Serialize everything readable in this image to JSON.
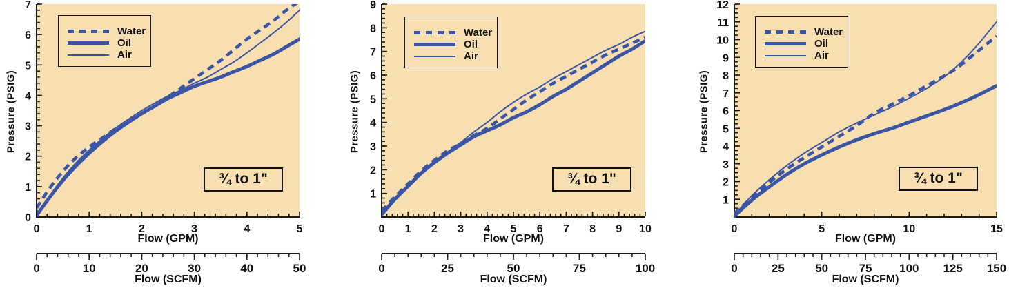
{
  "colors": {
    "curve_blue": "#3b55a5",
    "plot_background": "#f8dfb2",
    "axis": "#1a1a1a",
    "text": "#111111",
    "page_background": "#ffffff"
  },
  "chart_data": [
    {
      "type": "line",
      "size_label": "¾ to 1\"",
      "ylabel": "Pressure (PSIG)",
      "xlabel": "Flow (GPM)",
      "x2label": "Flow (SCFM)",
      "xlim": [
        0,
        5
      ],
      "ylim": [
        0,
        7
      ],
      "x2lim": [
        0,
        50
      ],
      "xticks": {
        "labels": [
          0,
          1,
          2,
          3,
          4,
          5
        ],
        "minor_step": 0.2
      },
      "yticks": {
        "labels": [
          0,
          1,
          2,
          3,
          4,
          5,
          6,
          7
        ],
        "minor_step": 0.2
      },
      "x2ticks": {
        "labels": [
          0,
          10,
          20,
          30,
          40,
          50
        ],
        "minor_step": 2
      },
      "legend_position": "upper-left",
      "grid": false,
      "series": [
        {
          "name": "Water",
          "style": "dashed",
          "points": [
            [
              0,
              0.3
            ],
            [
              0.25,
              0.95
            ],
            [
              0.5,
              1.5
            ],
            [
              0.75,
              1.95
            ],
            [
              1,
              2.3
            ],
            [
              1.25,
              2.6
            ],
            [
              1.5,
              2.9
            ],
            [
              1.75,
              3.15
            ],
            [
              2,
              3.4
            ],
            [
              2.25,
              3.65
            ],
            [
              2.5,
              3.95
            ],
            [
              2.75,
              4.25
            ],
            [
              3,
              4.55
            ],
            [
              3.25,
              4.85
            ],
            [
              3.5,
              5.15
            ],
            [
              3.75,
              5.5
            ],
            [
              4,
              5.85
            ],
            [
              4.25,
              6.15
            ],
            [
              4.5,
              6.45
            ],
            [
              4.75,
              6.8
            ],
            [
              5,
              7.1
            ]
          ]
        },
        {
          "name": "Oil",
          "style": "thick-solid",
          "points": [
            [
              0,
              0.05
            ],
            [
              0.25,
              0.65
            ],
            [
              0.5,
              1.2
            ],
            [
              0.75,
              1.68
            ],
            [
              1,
              2.1
            ],
            [
              1.25,
              2.48
            ],
            [
              1.5,
              2.82
            ],
            [
              1.75,
              3.12
            ],
            [
              2,
              3.4
            ],
            [
              2.25,
              3.65
            ],
            [
              2.5,
              3.9
            ],
            [
              2.75,
              4.1
            ],
            [
              3,
              4.3
            ],
            [
              3.25,
              4.45
            ],
            [
              3.5,
              4.6
            ],
            [
              3.75,
              4.78
            ],
            [
              4,
              4.95
            ],
            [
              4.25,
              5.15
            ],
            [
              4.5,
              5.35
            ],
            [
              4.75,
              5.6
            ],
            [
              5,
              5.85
            ]
          ]
        },
        {
          "name": "Air",
          "style": "thin-solid",
          "points": [
            [
              0,
              0.05
            ],
            [
              0.25,
              0.7
            ],
            [
              0.5,
              1.28
            ],
            [
              0.75,
              1.78
            ],
            [
              1,
              2.2
            ],
            [
              1.25,
              2.58
            ],
            [
              1.5,
              2.92
            ],
            [
              1.75,
              3.22
            ],
            [
              2,
              3.5
            ],
            [
              2.25,
              3.75
            ],
            [
              2.5,
              3.98
            ],
            [
              2.75,
              4.18
            ],
            [
              3,
              4.4
            ],
            [
              3.25,
              4.6
            ],
            [
              3.5,
              4.85
            ],
            [
              3.75,
              5.1
            ],
            [
              4,
              5.4
            ],
            [
              4.25,
              5.72
            ],
            [
              4.5,
              6.05
            ],
            [
              4.75,
              6.4
            ],
            [
              5,
              6.8
            ]
          ]
        }
      ]
    },
    {
      "type": "line",
      "size_label": "¾ to 1\"",
      "ylabel": "Pressure (PSIG)",
      "xlabel": "Flow (GPM)",
      "x2label": "Flow (SCFM)",
      "xlim": [
        0,
        10
      ],
      "ylim": [
        0,
        9
      ],
      "x2lim": [
        0,
        100
      ],
      "xticks": {
        "labels": [
          0,
          1,
          2,
          3,
          4,
          5,
          6,
          7,
          8,
          9,
          10
        ],
        "minor_step": 0.2
      },
      "yticks": {
        "labels": [
          1,
          2,
          3,
          4,
          5,
          6,
          7,
          8,
          9
        ],
        "minor_step": 0.2
      },
      "x2ticks": {
        "labels": [
          0,
          25,
          50,
          75,
          100
        ],
        "minor_step": 5
      },
      "legend_position": "upper-left",
      "grid": false,
      "series": [
        {
          "name": "Water",
          "style": "dashed",
          "points": [
            [
              0,
              0.25
            ],
            [
              0.5,
              0.85
            ],
            [
              1,
              1.4
            ],
            [
              1.5,
              1.95
            ],
            [
              2,
              2.4
            ],
            [
              2.5,
              2.8
            ],
            [
              3,
              3.1
            ],
            [
              3.5,
              3.45
            ],
            [
              4,
              3.75
            ],
            [
              4.5,
              4.15
            ],
            [
              5,
              4.55
            ],
            [
              5.5,
              4.95
            ],
            [
              6,
              5.3
            ],
            [
              6.5,
              5.65
            ],
            [
              7,
              5.95
            ],
            [
              7.5,
              6.25
            ],
            [
              8,
              6.55
            ],
            [
              8.5,
              6.85
            ],
            [
              9,
              7.1
            ],
            [
              9.5,
              7.35
            ],
            [
              10,
              7.6
            ]
          ]
        },
        {
          "name": "Oil",
          "style": "thick-solid",
          "points": [
            [
              0,
              0.1
            ],
            [
              0.5,
              0.75
            ],
            [
              1,
              1.3
            ],
            [
              1.5,
              1.85
            ],
            [
              2,
              2.3
            ],
            [
              2.5,
              2.7
            ],
            [
              3,
              3.05
            ],
            [
              3.5,
              3.4
            ],
            [
              4,
              3.65
            ],
            [
              4.5,
              3.9
            ],
            [
              5,
              4.2
            ],
            [
              5.5,
              4.45
            ],
            [
              6,
              4.75
            ],
            [
              6.5,
              5.1
            ],
            [
              7,
              5.4
            ],
            [
              7.5,
              5.75
            ],
            [
              8,
              6.1
            ],
            [
              8.5,
              6.45
            ],
            [
              9,
              6.8
            ],
            [
              9.5,
              7.1
            ],
            [
              10,
              7.45
            ]
          ]
        },
        {
          "name": "Air",
          "style": "thin-solid",
          "points": [
            [
              0,
              0.15
            ],
            [
              0.5,
              0.75
            ],
            [
              1,
              1.3
            ],
            [
              1.5,
              1.9
            ],
            [
              2,
              2.35
            ],
            [
              2.5,
              2.75
            ],
            [
              3,
              3.15
            ],
            [
              3.5,
              3.6
            ],
            [
              4,
              4.0
            ],
            [
              4.5,
              4.45
            ],
            [
              5,
              4.85
            ],
            [
              5.5,
              5.2
            ],
            [
              6,
              5.5
            ],
            [
              6.5,
              5.85
            ],
            [
              7,
              6.15
            ],
            [
              7.5,
              6.45
            ],
            [
              8,
              6.75
            ],
            [
              8.5,
              7.05
            ],
            [
              9,
              7.3
            ],
            [
              9.5,
              7.6
            ],
            [
              10,
              7.85
            ]
          ]
        }
      ]
    },
    {
      "type": "line",
      "size_label": "¾ to 1\"",
      "ylabel": "Pressure (PSIG)",
      "xlabel": "Flow (GPM)",
      "x2label": "Flow (SCFM)",
      "xlim": [
        0,
        15
      ],
      "ylim": [
        0,
        12
      ],
      "x2lim": [
        0,
        150
      ],
      "xticks": {
        "labels": [
          0,
          5,
          10,
          15
        ],
        "minor_step": 1
      },
      "yticks": {
        "labels": [
          1,
          2,
          3,
          4,
          5,
          6,
          7,
          8,
          9,
          10,
          11,
          12
        ],
        "minor_step": 0.25
      },
      "x2ticks": {
        "labels": [
          0,
          25,
          50,
          75,
          100,
          125,
          150
        ],
        "minor_step": 5
      },
      "legend_position": "upper-left",
      "grid": false,
      "series": [
        {
          "name": "Water",
          "style": "dashed",
          "points": [
            [
              0,
              0.2
            ],
            [
              1,
              1.1
            ],
            [
              2,
              1.95
            ],
            [
              3,
              2.7
            ],
            [
              4,
              3.35
            ],
            [
              5,
              3.95
            ],
            [
              6,
              4.55
            ],
            [
              7,
              5.15
            ],
            [
              8,
              5.85
            ],
            [
              9,
              6.35
            ],
            [
              10,
              6.85
            ],
            [
              11,
              7.4
            ],
            [
              12,
              7.95
            ],
            [
              12.5,
              8.25
            ],
            [
              13,
              8.6
            ],
            [
              13.5,
              9.0
            ],
            [
              14,
              9.4
            ],
            [
              14.5,
              9.8
            ],
            [
              15,
              10.2
            ]
          ]
        },
        {
          "name": "Oil",
          "style": "thick-solid",
          "points": [
            [
              0,
              0.05
            ],
            [
              1,
              0.95
            ],
            [
              2,
              1.7
            ],
            [
              3,
              2.4
            ],
            [
              4,
              3.0
            ],
            [
              5,
              3.5
            ],
            [
              6,
              3.95
            ],
            [
              7,
              4.35
            ],
            [
              8,
              4.7
            ],
            [
              9,
              5.0
            ],
            [
              10,
              5.35
            ],
            [
              11,
              5.7
            ],
            [
              12,
              6.05
            ],
            [
              13,
              6.45
            ],
            [
              14,
              6.9
            ],
            [
              15,
              7.4
            ]
          ]
        },
        {
          "name": "Air",
          "style": "thin-solid",
          "points": [
            [
              0,
              0.1
            ],
            [
              1,
              1.2
            ],
            [
              2,
              2.1
            ],
            [
              3,
              2.9
            ],
            [
              4,
              3.6
            ],
            [
              5,
              4.2
            ],
            [
              6,
              4.8
            ],
            [
              7,
              5.3
            ],
            [
              8,
              5.75
            ],
            [
              9,
              6.2
            ],
            [
              10,
              6.7
            ],
            [
              11,
              7.25
            ],
            [
              12,
              7.9
            ],
            [
              12.5,
              8.3
            ],
            [
              13,
              8.75
            ],
            [
              13.5,
              9.25
            ],
            [
              14,
              9.8
            ],
            [
              14.5,
              10.4
            ],
            [
              15,
              11.0
            ]
          ]
        }
      ]
    }
  ]
}
